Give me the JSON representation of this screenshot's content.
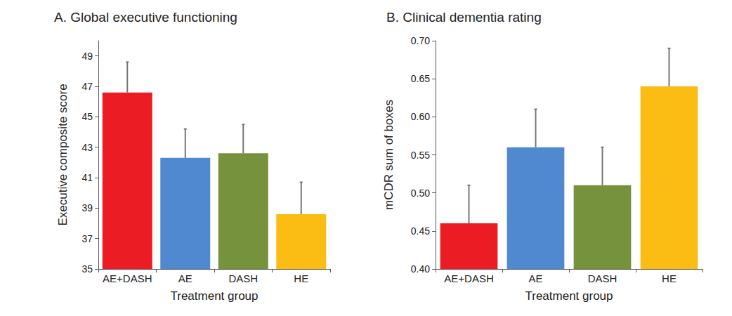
{
  "chart_data": [
    {
      "type": "bar",
      "title": "A. Global executive functioning",
      "x_label": "Treatment group",
      "y_label": "Executive composite score",
      "categories": [
        "AE+DASH",
        "AE",
        "DASH",
        "HE"
      ],
      "values": [
        46.6,
        42.3,
        42.6,
        38.6
      ],
      "errors": [
        2.0,
        1.9,
        1.9,
        2.1
      ],
      "colors": [
        "#ec1c24",
        "#5189d1",
        "#76923c",
        "#fbbd14"
      ],
      "ylim": [
        35,
        50
      ],
      "yticks": [
        35,
        37,
        39,
        41,
        43,
        45,
        47,
        49
      ],
      "grid": false
    },
    {
      "type": "bar",
      "title": "B. Clinical dementia rating",
      "x_label": "Treatment group",
      "y_label": "mCDR sum of boxes",
      "categories": [
        "AE+DASH",
        "AE",
        "DASH",
        "HE"
      ],
      "values": [
        0.46,
        0.56,
        0.51,
        0.64
      ],
      "errors": [
        0.05,
        0.05,
        0.05,
        0.05
      ],
      "colors": [
        "#ec1c24",
        "#5189d1",
        "#76923c",
        "#fbbd14"
      ],
      "ylim": [
        0.4,
        0.7
      ],
      "yticks": [
        {
          "value": 0.4,
          "label": "0.40"
        },
        0.45,
        {
          "value": 0.5,
          "label": "0.50"
        },
        0.55,
        {
          "value": 0.6,
          "label": "0.60"
        },
        0.65,
        {
          "value": 0.7,
          "label": "0.70"
        }
      ],
      "grid": false
    }
  ]
}
